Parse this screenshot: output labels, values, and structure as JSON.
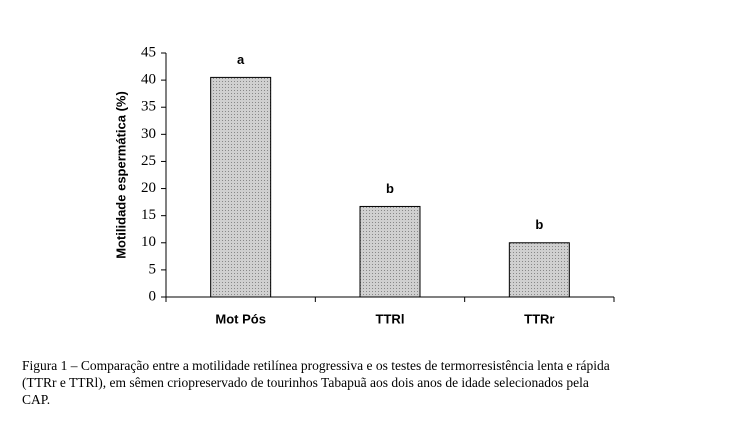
{
  "chart_data": {
    "type": "bar",
    "y_label": "Motilidade espermática (%)",
    "categories": [
      "Mot Pós",
      "TTRl",
      "TTRr"
    ],
    "values": [
      40.5,
      16.7,
      10
    ],
    "annotations": [
      "a",
      "b",
      "b"
    ],
    "color": "#c4c4c4",
    "ylim": [
      0,
      45
    ],
    "yticks": [
      0,
      5,
      10,
      15,
      20,
      25,
      30,
      35,
      40,
      45
    ],
    "grid": false
  },
  "caption": {
    "lines": [
      "Figura 1 – Comparação entre a motilidade retilínea progressiva e os testes de termorresistência lenta e rápida",
      "(TTRr e TTRl), em sêmen criopreservado de tourinhos Tabapuã aos dois anos de idade selecionados pela",
      "CAP."
    ]
  }
}
